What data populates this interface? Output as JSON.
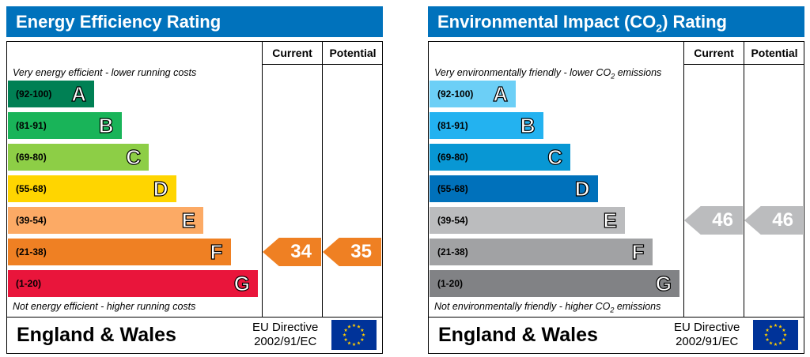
{
  "chart_data": [
    {
      "type": "bar",
      "title": "Energy Efficiency Rating",
      "columns": [
        "Current",
        "Potential"
      ],
      "top_caption": "Very energy efficient - lower running costs",
      "bottom_caption": "Not energy efficient - higher running costs",
      "bands": [
        {
          "range": "(92-100)",
          "letter": "A",
          "color": "#008054"
        },
        {
          "range": "(81-91)",
          "letter": "B",
          "color": "#19b459"
        },
        {
          "range": "(69-80)",
          "letter": "C",
          "color": "#8dce46"
        },
        {
          "range": "(55-68)",
          "letter": "D",
          "color": "#ffd500"
        },
        {
          "range": "(39-54)",
          "letter": "E",
          "color": "#fcaa65"
        },
        {
          "range": "(21-38)",
          "letter": "F",
          "color": "#ef8023"
        },
        {
          "range": "(1-20)",
          "letter": "G",
          "color": "#e9153b"
        }
      ],
      "current": {
        "value": 34,
        "band": "F",
        "color": "#ef8023"
      },
      "potential": {
        "value": 35,
        "band": "F",
        "color": "#ef8023"
      },
      "title_color": "#0072bc"
    },
    {
      "type": "bar",
      "title": "Environmental Impact (CO",
      "title_sub": "2",
      "title_end": ") Rating",
      "columns": [
        "Current",
        "Potential"
      ],
      "top_caption": "Very environmentally friendly - lower CO",
      "top_caption_sub": "2",
      "top_caption_end": " emissions",
      "bottom_caption": "Not environmentally friendly - higher CO",
      "bottom_caption_sub": "2",
      "bottom_caption_end": " emissions",
      "bands": [
        {
          "range": "(92-100)",
          "letter": "A",
          "color": "#6ccff6"
        },
        {
          "range": "(81-91)",
          "letter": "B",
          "color": "#23b2f0"
        },
        {
          "range": "(69-80)",
          "letter": "C",
          "color": "#0897d4"
        },
        {
          "range": "(55-68)",
          "letter": "D",
          "color": "#0071bb"
        },
        {
          "range": "(39-54)",
          "letter": "E",
          "color": "#bbbcbe"
        },
        {
          "range": "(21-38)",
          "letter": "F",
          "color": "#a1a2a4"
        },
        {
          "range": "(1-20)",
          "letter": "G",
          "color": "#818285"
        }
      ],
      "current": {
        "value": 46,
        "band": "E",
        "color": "#bbbcbe"
      },
      "potential": {
        "value": 46,
        "band": "E",
        "color": "#bbbcbe"
      },
      "title_color": "#0072bc"
    }
  ],
  "footer": {
    "region": "England & Wales",
    "directive_line1": "EU Directive",
    "directive_line2": "2002/91/EC",
    "flag_icon": "eu-flag-icon",
    "flag_color": "#003399",
    "star_color": "#ffcc00"
  }
}
